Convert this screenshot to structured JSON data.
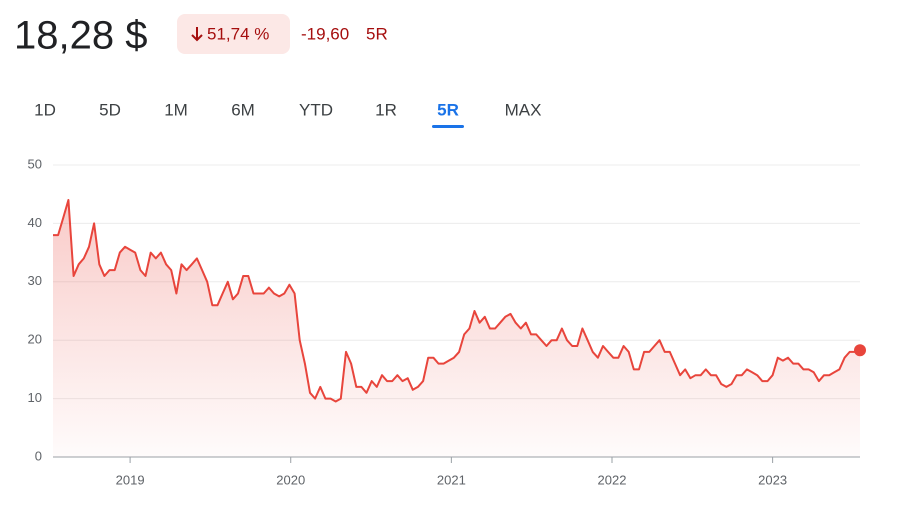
{
  "header": {
    "price": "18,28 $",
    "change_percent": "51,74 %",
    "change_value": "-19,60",
    "period": "5R"
  },
  "tabs": {
    "items": [
      "1D",
      "5D",
      "1M",
      "6M",
      "YTD",
      "1R",
      "5R",
      "MAX"
    ],
    "active": 6
  },
  "chart_data": {
    "type": "line",
    "x": [
      2018.52,
      2018.552,
      2018.584,
      2018.616,
      2018.648,
      2018.68,
      2018.712,
      2018.744,
      2018.776,
      2018.808,
      2018.84,
      2018.872,
      2018.904,
      2018.936,
      2018.968,
      2019.0,
      2019.032,
      2019.064,
      2019.096,
      2019.128,
      2019.16,
      2019.192,
      2019.224,
      2019.256,
      2019.288,
      2019.32,
      2019.352,
      2019.384,
      2019.416,
      2019.448,
      2019.48,
      2019.512,
      2019.544,
      2019.576,
      2019.608,
      2019.64,
      2019.672,
      2019.704,
      2019.736,
      2019.768,
      2019.8,
      2019.832,
      2019.864,
      2019.896,
      2019.928,
      2019.96,
      2019.992,
      2020.024,
      2020.056,
      2020.088,
      2020.12,
      2020.152,
      2020.184,
      2020.216,
      2020.248,
      2020.28,
      2020.312,
      2020.344,
      2020.376,
      2020.408,
      2020.44,
      2020.472,
      2020.504,
      2020.536,
      2020.568,
      2020.6,
      2020.632,
      2020.664,
      2020.696,
      2020.728,
      2020.76,
      2020.792,
      2020.824,
      2020.856,
      2020.888,
      2020.92,
      2020.952,
      2020.984,
      2021.016,
      2021.048,
      2021.08,
      2021.112,
      2021.144,
      2021.176,
      2021.208,
      2021.24,
      2021.272,
      2021.304,
      2021.336,
      2021.368,
      2021.4,
      2021.432,
      2021.464,
      2021.496,
      2021.528,
      2021.56,
      2021.592,
      2021.624,
      2021.656,
      2021.688,
      2021.72,
      2021.752,
      2021.784,
      2021.816,
      2021.848,
      2021.88,
      2021.912,
      2021.944,
      2021.976,
      2022.008,
      2022.04,
      2022.072,
      2022.104,
      2022.136,
      2022.168,
      2022.2,
      2022.232,
      2022.264,
      2022.296,
      2022.328,
      2022.36,
      2022.392,
      2022.424,
      2022.456,
      2022.488,
      2022.52,
      2022.552,
      2022.584,
      2022.616,
      2022.648,
      2022.68,
      2022.712,
      2022.744,
      2022.776,
      2022.808,
      2022.84,
      2022.872,
      2022.904,
      2022.936,
      2022.968,
      2023.0,
      2023.032,
      2023.064,
      2023.096,
      2023.128,
      2023.16,
      2023.192,
      2023.224,
      2023.256,
      2023.288,
      2023.32,
      2023.352,
      2023.384,
      2023.416,
      2023.448,
      2023.48,
      2023.512,
      2023.544
    ],
    "values": [
      38,
      38,
      41,
      44,
      31,
      33,
      34,
      36,
      40,
      33,
      31,
      32,
      32,
      35,
      36,
      35.5,
      35,
      32,
      31,
      35,
      34,
      35,
      33,
      32,
      28,
      33,
      32,
      33,
      34,
      32,
      30,
      26,
      26,
      28,
      30,
      27,
      28,
      31,
      31,
      28,
      28,
      28,
      29,
      28,
      27.5,
      28,
      29.5,
      28,
      20,
      16,
      11,
      10,
      12,
      10,
      10,
      9.5,
      10,
      18,
      16,
      12,
      12,
      11,
      13,
      12,
      14,
      13,
      13,
      14,
      13,
      13.5,
      11.5,
      12,
      13,
      17,
      17,
      16,
      16,
      16.5,
      17,
      18,
      21,
      22,
      25,
      23,
      24,
      22,
      22,
      23,
      24,
      24.5,
      23,
      22,
      23,
      21,
      21,
      20,
      19,
      20,
      20,
      22,
      20,
      19,
      19,
      22,
      20,
      18,
      17,
      19,
      18,
      17,
      17,
      19,
      18,
      15,
      15,
      18,
      18,
      19,
      20,
      18,
      18,
      16,
      14,
      15,
      13.5,
      14,
      14,
      15,
      14,
      14,
      12.5,
      12,
      12.5,
      14,
      14,
      15,
      14.5,
      14,
      13,
      13,
      14,
      17,
      16.5,
      17,
      16,
      16,
      15,
      15,
      14.5,
      13,
      14,
      14,
      14.5,
      15,
      17,
      18,
      18,
      18.28
    ],
    "color": "#e8453c",
    "xlim": [
      2018.52,
      2023.544
    ],
    "xticks": [
      2019,
      2020,
      2021,
      2022,
      2023
    ],
    "ylim": [
      0,
      50
    ],
    "yticks": [
      0,
      10,
      20,
      30,
      40,
      50
    ],
    "grid": true
  }
}
